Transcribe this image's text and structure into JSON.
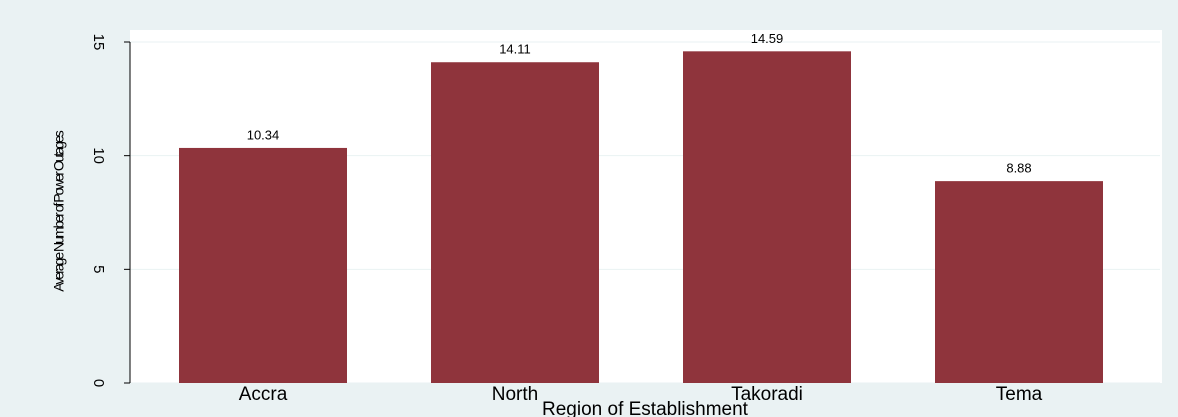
{
  "chart_data": {
    "type": "bar",
    "categories": [
      "Accra",
      "North",
      "Takoradi",
      "Tema"
    ],
    "values": [
      10.34,
      14.11,
      14.59,
      8.88
    ],
    "color": "#8f343c",
    "ylim": [
      0,
      15
    ],
    "yticks": [
      0,
      5,
      10,
      15
    ],
    "grid": true,
    "ylabel": "Average Number of Power Outages",
    "xlabel": "Region of Establishment"
  }
}
